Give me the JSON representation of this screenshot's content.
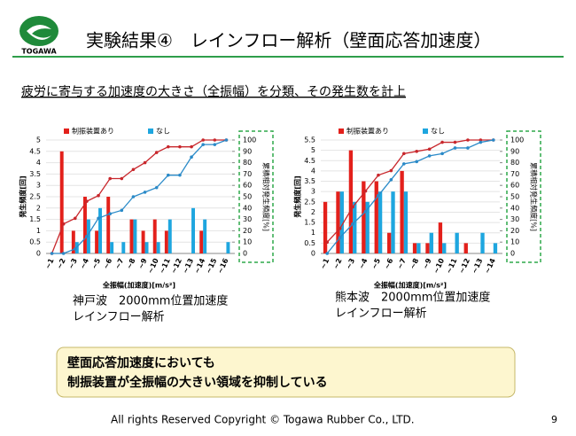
{
  "slide": {
    "logo": "TOGAWA",
    "title": "実験結果④　レインフロー解析（壁面応答加速度）",
    "subtitle": "疲労に寄与する加速度の大きさ（全振幅）を分類、その発生数を計上",
    "conclusion": [
      "壁面応答加速度においても",
      "制振装置が全振幅の大きい領域を抑制している"
    ],
    "footer": "All  rights Reserved Copyright © Togawa Rubber Co., LTD.",
    "page": "9"
  },
  "chart_data": [
    {
      "type": "bar",
      "caption": [
        "神戸波　2000mm位置加速度",
        "レインフロー解析"
      ],
      "xlabel": "全振幅(加速度)[m/s²]",
      "ylabel": "発生頻度[回]",
      "y2label": "累積相対発生頻度[%]",
      "categories": [
        "~1",
        "~2",
        "~3",
        "~4",
        "~5",
        "~6",
        "~7",
        "~8",
        "~9",
        "~10",
        "~11",
        "~12",
        "~13",
        "~14",
        "~15",
        "~16"
      ],
      "ylim": [
        0,
        5
      ],
      "yticks": [
        0,
        0.5,
        1,
        1.5,
        2,
        2.5,
        3,
        3.5,
        4,
        4.5,
        5
      ],
      "y2lim": [
        0,
        100
      ],
      "y2ticks": [
        0,
        10,
        20,
        30,
        40,
        50,
        60,
        70,
        80,
        90,
        100
      ],
      "series": [
        {
          "name": "制振装置あり",
          "color": "#e3201b",
          "values": [
            0,
            4.5,
            1,
            2.5,
            1,
            2.5,
            0,
            1.5,
            1,
            1.5,
            1,
            0,
            0,
            1,
            0,
            0
          ]
        },
        {
          "name": "なし",
          "color": "#1ea6df",
          "values": [
            0,
            0,
            0.5,
            1.5,
            2,
            0.5,
            0.5,
            1.5,
            0.5,
            0.5,
            1.5,
            0,
            2,
            1.5,
            0,
            0.5
          ]
        },
        {
          "type": "line",
          "axis": "y2",
          "color": "#c8272c",
          "values": [
            0,
            26,
            31,
            46,
            51,
            66,
            66,
            74,
            80,
            89,
            94,
            94,
            94,
            100,
            100,
            100
          ]
        },
        {
          "type": "line",
          "axis": "y2",
          "color": "#2a8ac8",
          "values": [
            0,
            0,
            4,
            15,
            31,
            35,
            38,
            50,
            54,
            58,
            69,
            69,
            85,
            96,
            96,
            100
          ]
        }
      ]
    },
    {
      "type": "bar",
      "caption": [
        "熊本波　2000mm位置加速度",
        "レインフロー解析"
      ],
      "xlabel": "全振幅(加速度)[m/s²]",
      "ylabel": "発生頻度[回]",
      "y2label": "累積相対発生頻度[%]",
      "categories": [
        "~1",
        "~2",
        "~3",
        "~4",
        "~5",
        "~6",
        "~7",
        "~8",
        "~9",
        "~10",
        "~11",
        "~12",
        "~13",
        "~14"
      ],
      "ylim": [
        0,
        5.5
      ],
      "yticks": [
        0,
        0.5,
        1,
        1.5,
        2,
        2.5,
        3,
        3.5,
        4,
        4.5,
        5,
        5.5
      ],
      "y2lim": [
        0,
        100
      ],
      "y2ticks": [
        0,
        10,
        20,
        30,
        40,
        50,
        60,
        70,
        80,
        90,
        100
      ],
      "series": [
        {
          "name": "制振装置あり",
          "color": "#e3201b",
          "values": [
            2.5,
            3,
            5,
            3.5,
            3.5,
            1,
            4,
            0.5,
            0.5,
            1.5,
            0,
            0.5,
            0,
            0
          ]
        },
        {
          "name": "なし",
          "color": "#1ea6df",
          "values": [
            0,
            3,
            2.5,
            2.5,
            3,
            3,
            3,
            0.5,
            1,
            0.5,
            1,
            0,
            1,
            0.5
          ]
        },
        {
          "type": "line",
          "axis": "y2",
          "color": "#c8272c",
          "values": [
            10,
            22,
            41,
            55,
            69,
            73,
            88,
            90,
            92,
            98,
            98,
            100,
            100,
            100
          ]
        },
        {
          "type": "line",
          "axis": "y2",
          "color": "#2a8ac8",
          "values": [
            0,
            14,
            26,
            37,
            51,
            65,
            79,
            81,
            86,
            88,
            93,
            93,
            98,
            100
          ]
        }
      ]
    }
  ]
}
